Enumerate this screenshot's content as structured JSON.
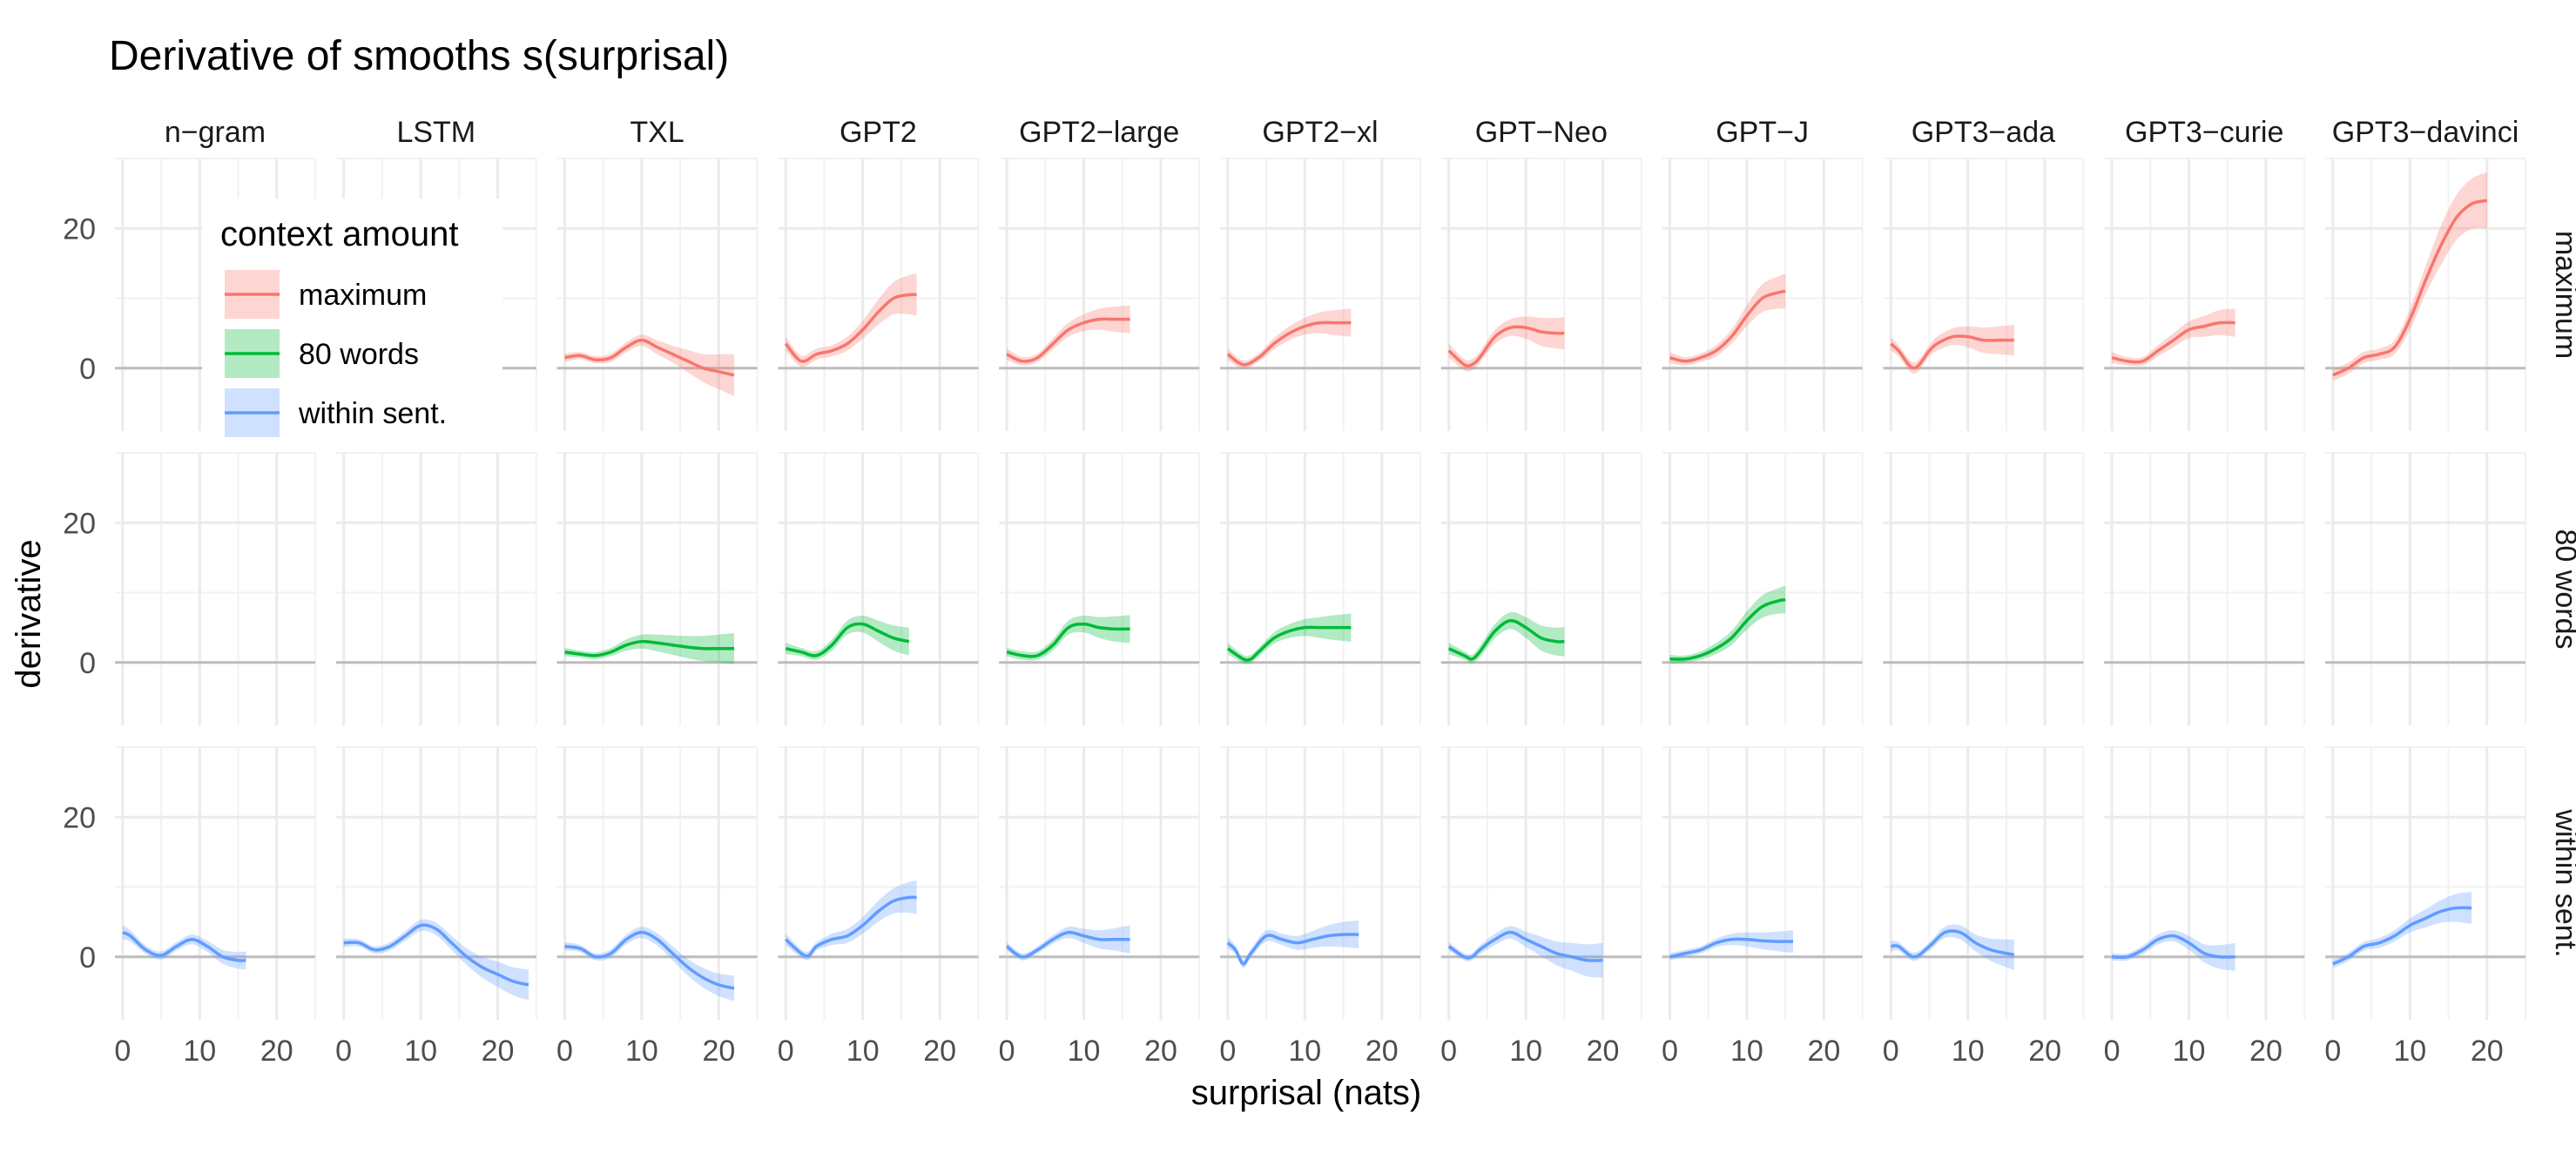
{
  "chart_data": {
    "type": "line",
    "title": "Derivative of smooths s(surprisal)",
    "xlabel": "surprisal (nats)",
    "ylabel": "derivative",
    "xlim": [
      -1,
      25
    ],
    "ylim": [
      -9,
      30
    ],
    "x_ticks": [
      0,
      10,
      20
    ],
    "y_ticks": [
      0,
      20
    ],
    "grid": true,
    "legend": {
      "title": "context amount",
      "placement": "inside top-left",
      "entries": [
        {
          "label": "maximum",
          "color": "#F8766D"
        },
        {
          "label": "80 words",
          "color": "#00BA38"
        },
        {
          "label": "within sent.",
          "color": "#619CFF"
        }
      ]
    },
    "columns": [
      "n−gram",
      "LSTM",
      "TXL",
      "GPT2",
      "GPT2−large",
      "GPT2−xl",
      "GPT−Neo",
      "GPT−J",
      "GPT3−ada",
      "GPT3−curie",
      "GPT3−davinci"
    ],
    "rows": [
      "maximum",
      "80 words",
      "within sent."
    ],
    "series": [
      {
        "row": "maximum",
        "col": "TXL",
        "x": [
          0,
          2,
          4,
          6,
          8,
          10,
          12,
          14,
          16,
          18,
          20,
          22
        ],
        "y": [
          1.5,
          1.8,
          1.2,
          1.5,
          3.0,
          4.0,
          3.0,
          2.0,
          1.0,
          0,
          -0.5,
          -1.0
        ],
        "band": [
          0.6,
          0.5,
          0.5,
          0.6,
          0.7,
          0.8,
          1.0,
          1.2,
          1.6,
          2.0,
          2.5,
          3.0
        ]
      },
      {
        "row": "maximum",
        "col": "GPT2",
        "x": [
          0,
          2,
          4,
          6,
          8,
          10,
          12,
          14,
          16,
          17
        ],
        "y": [
          3.5,
          1.0,
          2.0,
          2.5,
          3.5,
          5.5,
          8.0,
          10.0,
          10.5,
          10.5
        ],
        "band": [
          1.0,
          0.8,
          0.8,
          0.8,
          1.0,
          1.3,
          1.8,
          2.3,
          2.8,
          3.0
        ]
      },
      {
        "row": "maximum",
        "col": "GPT2−large",
        "x": [
          0,
          2,
          4,
          6,
          8,
          10,
          12,
          14,
          16
        ],
        "y": [
          2.0,
          1.0,
          1.5,
          3.5,
          5.5,
          6.5,
          7.0,
          7.0,
          7.0
        ],
        "band": [
          0.8,
          0.6,
          0.6,
          0.8,
          1.0,
          1.2,
          1.5,
          1.8,
          2.0
        ]
      },
      {
        "row": "maximum",
        "col": "GPT2−xl",
        "x": [
          0,
          2,
          4,
          6,
          8,
          10,
          12,
          14,
          16
        ],
        "y": [
          2.0,
          0.5,
          1.5,
          3.5,
          5.0,
          6.0,
          6.5,
          6.5,
          6.5
        ],
        "band": [
          0.8,
          0.6,
          0.6,
          0.8,
          1.0,
          1.2,
          1.5,
          1.8,
          2.0
        ]
      },
      {
        "row": "maximum",
        "col": "GPT−Neo",
        "x": [
          0,
          2,
          3,
          4,
          6,
          8,
          10,
          12,
          14,
          15
        ],
        "y": [
          2.5,
          0.5,
          0.5,
          1.5,
          4.5,
          5.8,
          5.8,
          5.2,
          5.0,
          5.0
        ],
        "band": [
          1.0,
          0.8,
          0.8,
          0.8,
          1.0,
          1.2,
          1.6,
          2.0,
          2.2,
          2.3
        ]
      },
      {
        "row": "maximum",
        "col": "GPT−J",
        "x": [
          0,
          2,
          4,
          6,
          8,
          10,
          12,
          14,
          15
        ],
        "y": [
          1.5,
          1.0,
          1.5,
          2.5,
          4.5,
          7.5,
          10.0,
          10.8,
          11.0
        ],
        "band": [
          0.8,
          0.6,
          0.6,
          0.8,
          1.0,
          1.5,
          2.0,
          2.3,
          2.5
        ]
      },
      {
        "row": "maximum",
        "col": "GPT3−ada",
        "x": [
          0,
          1,
          3,
          5,
          6,
          8,
          10,
          12,
          14,
          16
        ],
        "y": [
          3.5,
          2.5,
          0.0,
          2.5,
          3.5,
          4.5,
          4.5,
          4.0,
          4.0,
          4.0
        ],
        "band": [
          1.0,
          0.8,
          0.8,
          0.8,
          1.0,
          1.2,
          1.5,
          1.8,
          2.0,
          2.2
        ]
      },
      {
        "row": "maximum",
        "col": "GPT3−curie",
        "x": [
          0,
          2,
          4,
          6,
          8,
          10,
          12,
          14,
          16
        ],
        "y": [
          1.5,
          1.0,
          1.0,
          2.5,
          4.0,
          5.5,
          6.0,
          6.5,
          6.5
        ],
        "band": [
          0.8,
          0.6,
          0.6,
          0.8,
          1.0,
          1.2,
          1.5,
          1.8,
          2.0
        ]
      },
      {
        "row": "maximum",
        "col": "GPT3−davinci",
        "x": [
          0,
          2,
          4,
          6,
          8,
          10,
          12,
          14,
          16,
          18,
          20
        ],
        "y": [
          -1.0,
          0,
          1.5,
          2.0,
          3.0,
          7.0,
          12.5,
          17.5,
          21.5,
          23.5,
          24.0
        ],
        "band": [
          0.8,
          0.8,
          0.8,
          0.8,
          1.0,
          1.5,
          2.0,
          2.8,
          3.2,
          3.6,
          4.0
        ]
      },
      {
        "row": "80 words",
        "col": "TXL",
        "x": [
          0,
          2,
          4,
          6,
          8,
          10,
          12,
          14,
          16,
          18,
          20,
          22
        ],
        "y": [
          1.5,
          1.2,
          1.0,
          1.5,
          2.5,
          3.0,
          2.8,
          2.5,
          2.2,
          2.0,
          2.0,
          2.0
        ],
        "band": [
          0.6,
          0.5,
          0.5,
          0.6,
          0.8,
          1.0,
          1.2,
          1.4,
          1.6,
          1.8,
          2.0,
          2.2
        ]
      },
      {
        "row": "80 words",
        "col": "GPT2",
        "x": [
          0,
          2,
          4,
          6,
          8,
          10,
          12,
          14,
          16
        ],
        "y": [
          2.0,
          1.5,
          1.0,
          2.5,
          5.0,
          5.5,
          4.5,
          3.5,
          3.0
        ],
        "band": [
          0.8,
          0.6,
          0.6,
          0.8,
          1.0,
          1.2,
          1.5,
          1.8,
          2.0
        ]
      },
      {
        "row": "80 words",
        "col": "GPT2−large",
        "x": [
          0,
          2,
          4,
          6,
          8,
          10,
          12,
          14,
          16
        ],
        "y": [
          1.5,
          1.0,
          1.0,
          2.5,
          5.0,
          5.5,
          5.0,
          4.8,
          4.8
        ],
        "band": [
          0.6,
          0.6,
          0.6,
          0.8,
          1.0,
          1.2,
          1.5,
          1.8,
          2.0
        ]
      },
      {
        "row": "80 words",
        "col": "GPT2−xl",
        "x": [
          0,
          2,
          3,
          4,
          6,
          8,
          10,
          12,
          14,
          16
        ],
        "y": [
          2.0,
          0.5,
          0.5,
          1.5,
          3.5,
          4.5,
          5.0,
          5.0,
          5.0,
          5.0
        ],
        "band": [
          0.8,
          0.6,
          0.6,
          0.6,
          0.8,
          1.0,
          1.2,
          1.5,
          1.8,
          2.0
        ]
      },
      {
        "row": "80 words",
        "col": "GPT−Neo",
        "x": [
          0,
          2,
          3,
          4,
          6,
          8,
          10,
          12,
          14,
          15
        ],
        "y": [
          2.0,
          1.0,
          0.5,
          1.5,
          4.5,
          6.0,
          5.0,
          3.5,
          3.0,
          3.0
        ],
        "band": [
          0.8,
          0.6,
          0.6,
          0.8,
          1.0,
          1.2,
          1.5,
          1.8,
          2.0,
          2.1
        ]
      },
      {
        "row": "80 words",
        "col": "GPT−J",
        "x": [
          0,
          2,
          4,
          6,
          8,
          10,
          12,
          14,
          15
        ],
        "y": [
          0.5,
          0.5,
          1.0,
          2.0,
          3.5,
          6.0,
          8.0,
          8.8,
          9.0
        ],
        "band": [
          0.6,
          0.5,
          0.6,
          0.8,
          1.0,
          1.3,
          1.6,
          1.8,
          2.0
        ]
      },
      {
        "row": "within sent.",
        "col": "n−gram",
        "x": [
          0,
          1,
          3,
          5,
          7,
          9,
          11,
          13,
          15,
          16
        ],
        "y": [
          3.5,
          3.0,
          1.0,
          0.2,
          1.5,
          2.5,
          1.5,
          0,
          -0.5,
          -0.5
        ],
        "band": [
          1.0,
          0.8,
          0.6,
          0.6,
          0.6,
          0.7,
          0.8,
          1.0,
          1.2,
          1.3
        ]
      },
      {
        "row": "within sent.",
        "col": "LSTM",
        "x": [
          0,
          2,
          4,
          6,
          8,
          10,
          12,
          14,
          16,
          18,
          20,
          22,
          24
        ],
        "y": [
          2.0,
          2.0,
          1.0,
          1.5,
          3.0,
          4.5,
          4.0,
          2.0,
          0,
          -1.5,
          -2.5,
          -3.5,
          -4.0
        ],
        "band": [
          0.6,
          0.5,
          0.5,
          0.6,
          0.7,
          0.8,
          0.9,
          1.0,
          1.2,
          1.5,
          1.8,
          2.0,
          2.2
        ]
      },
      {
        "row": "within sent.",
        "col": "TXL",
        "x": [
          0,
          2,
          4,
          6,
          8,
          10,
          12,
          14,
          16,
          18,
          20,
          22
        ],
        "y": [
          1.5,
          1.2,
          0,
          0.5,
          2.5,
          3.5,
          2.5,
          0.5,
          -1.5,
          -3.0,
          -4.0,
          -4.5
        ],
        "band": [
          0.6,
          0.5,
          0.5,
          0.6,
          0.7,
          0.8,
          0.9,
          1.0,
          1.2,
          1.4,
          1.6,
          1.8
        ]
      },
      {
        "row": "within sent.",
        "col": "GPT2",
        "x": [
          0,
          2,
          3,
          4,
          6,
          8,
          10,
          12,
          14,
          16,
          17
        ],
        "y": [
          2.5,
          0.5,
          0.2,
          1.5,
          2.5,
          3.0,
          4.5,
          6.5,
          8.0,
          8.5,
          8.5
        ],
        "band": [
          0.8,
          0.6,
          0.6,
          0.6,
          0.8,
          1.0,
          1.2,
          1.5,
          1.8,
          2.2,
          2.4
        ]
      },
      {
        "row": "within sent.",
        "col": "GPT2−large",
        "x": [
          0,
          2,
          4,
          6,
          8,
          10,
          12,
          14,
          16
        ],
        "y": [
          1.5,
          0,
          1.0,
          2.5,
          3.5,
          3.0,
          2.5,
          2.5,
          2.5
        ],
        "band": [
          0.6,
          0.5,
          0.5,
          0.6,
          0.8,
          1.0,
          1.3,
          1.6,
          2.0
        ]
      },
      {
        "row": "within sent.",
        "col": "GPT2−xl",
        "x": [
          0,
          1,
          2,
          3,
          5,
          7,
          9,
          11,
          13,
          15,
          17
        ],
        "y": [
          2.0,
          1.0,
          -1.0,
          0.5,
          3.0,
          2.5,
          2.0,
          2.5,
          3.0,
          3.2,
          3.2
        ],
        "band": [
          0.8,
          0.6,
          0.6,
          0.6,
          0.8,
          0.8,
          1.0,
          1.2,
          1.5,
          1.8,
          2.0
        ]
      },
      {
        "row": "within sent.",
        "col": "GPT−Neo",
        "x": [
          0,
          2,
          3,
          4,
          6,
          8,
          10,
          12,
          14,
          16,
          18,
          20
        ],
        "y": [
          1.5,
          0,
          0,
          1.0,
          2.5,
          3.5,
          2.5,
          1.5,
          0.5,
          0,
          -0.5,
          -0.5
        ],
        "band": [
          0.6,
          0.5,
          0.5,
          0.6,
          0.8,
          0.9,
          1.1,
          1.4,
          1.7,
          2.0,
          2.3,
          2.5
        ]
      },
      {
        "row": "within sent.",
        "col": "GPT−J",
        "x": [
          0,
          2,
          4,
          6,
          8,
          10,
          12,
          14,
          16
        ],
        "y": [
          0,
          0.5,
          1.0,
          2.0,
          2.5,
          2.5,
          2.3,
          2.2,
          2.2
        ],
        "band": [
          0.5,
          0.5,
          0.5,
          0.6,
          0.8,
          1.0,
          1.2,
          1.4,
          1.6
        ]
      },
      {
        "row": "within sent.",
        "col": "GPT3−ada",
        "x": [
          0,
          1,
          3,
          5,
          7,
          9,
          11,
          13,
          15,
          16
        ],
        "y": [
          1.5,
          1.5,
          0,
          1.5,
          3.5,
          3.5,
          2.0,
          1.0,
          0.5,
          0.3
        ],
        "band": [
          0.8,
          0.6,
          0.6,
          0.6,
          0.8,
          1.0,
          1.2,
          1.6,
          2.0,
          2.2
        ]
      },
      {
        "row": "within sent.",
        "col": "GPT3−curie",
        "x": [
          0,
          2,
          4,
          6,
          8,
          10,
          12,
          14,
          16
        ],
        "y": [
          0,
          0,
          1.0,
          2.5,
          3.0,
          2.0,
          0.5,
          0,
          0
        ],
        "band": [
          0.5,
          0.5,
          0.6,
          0.7,
          0.8,
          1.0,
          1.3,
          1.7,
          2.0
        ]
      },
      {
        "row": "within sent.",
        "col": "GPT3−davinci",
        "x": [
          0,
          2,
          4,
          6,
          8,
          10,
          12,
          14,
          16,
          18
        ],
        "y": [
          -1.0,
          0,
          1.5,
          2.0,
          3.0,
          4.5,
          5.5,
          6.5,
          7.0,
          7.0
        ],
        "band": [
          0.6,
          0.6,
          0.6,
          0.7,
          0.8,
          1.0,
          1.3,
          1.6,
          2.0,
          2.3
        ]
      }
    ]
  }
}
